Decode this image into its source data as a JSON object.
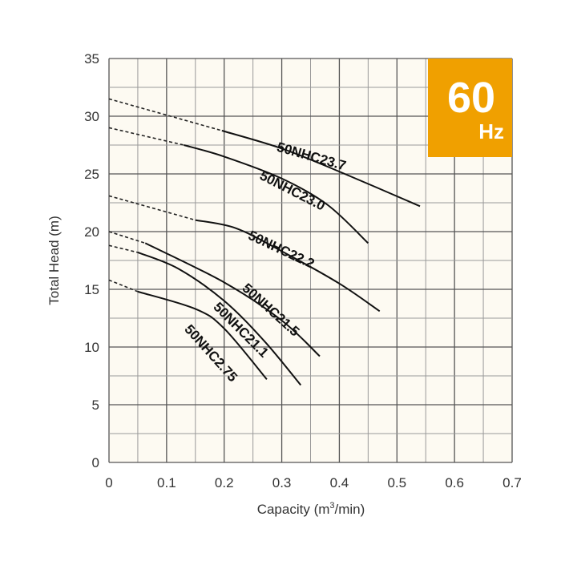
{
  "chart_data": {
    "type": "line",
    "title": "",
    "xlabel": "Capacity (m³/min)",
    "xlabel_parts": {
      "pre": "Capacity (m",
      "sup": "3",
      "post": "/min)"
    },
    "ylabel": "Total Head (m)",
    "xlim": [
      0,
      0.7
    ],
    "ylim": [
      0,
      35
    ],
    "xticks": [
      "0",
      "0.1",
      "0.2",
      "0.3",
      "0.4",
      "0.5",
      "0.6",
      "0.7"
    ],
    "yticks": [
      "0",
      "5",
      "10",
      "15",
      "20",
      "25",
      "30",
      "35"
    ],
    "grid": true,
    "badge": {
      "value": "60",
      "unit": "Hz",
      "color": "#f0a000"
    },
    "colors": {
      "background": "#fdfaf2",
      "grid": "#555555",
      "curve": "#111111"
    },
    "series": [
      {
        "name": "50NHC23.7",
        "dashed": [
          [
            0,
            31.5
          ],
          [
            0.196,
            28.75
          ]
        ],
        "solid": [
          [
            0.196,
            28.75
          ],
          [
            0.3,
            27.2
          ],
          [
            0.4,
            25.2
          ],
          [
            0.54,
            22.2
          ]
        ]
      },
      {
        "name": "50NHC23.0",
        "dashed": [
          [
            0,
            29.0
          ],
          [
            0.13,
            27.5
          ]
        ],
        "solid": [
          [
            0.13,
            27.5
          ],
          [
            0.2,
            26.5
          ],
          [
            0.3,
            24.6
          ],
          [
            0.38,
            22.3
          ],
          [
            0.45,
            19.0
          ]
        ]
      },
      {
        "name": "50NHC22.2",
        "dashed": [
          [
            0,
            23.1
          ],
          [
            0.15,
            21.0
          ]
        ],
        "solid": [
          [
            0.15,
            21.0
          ],
          [
            0.22,
            20.3
          ],
          [
            0.3,
            18.3
          ],
          [
            0.4,
            15.5
          ],
          [
            0.47,
            13.1
          ]
        ]
      },
      {
        "name": "50NHC21.5",
        "dashed": [
          [
            0,
            20.0
          ],
          [
            0.063,
            19.0
          ]
        ],
        "solid": [
          [
            0.063,
            19.0
          ],
          [
            0.2,
            15.6
          ],
          [
            0.3,
            12.3
          ],
          [
            0.366,
            9.2
          ]
        ]
      },
      {
        "name": "50NHC21.1",
        "dashed": [
          [
            0,
            18.8
          ],
          [
            0.05,
            18.2
          ]
        ],
        "solid": [
          [
            0.05,
            18.2
          ],
          [
            0.12,
            16.8
          ],
          [
            0.2,
            14.0
          ],
          [
            0.27,
            10.5
          ],
          [
            0.333,
            6.7
          ]
        ]
      },
      {
        "name": "50NHC2.75",
        "dashed": [
          [
            0,
            15.8
          ],
          [
            0.05,
            14.8
          ]
        ],
        "solid": [
          [
            0.05,
            14.8
          ],
          [
            0.15,
            13.3
          ],
          [
            0.2,
            11.6
          ],
          [
            0.274,
            7.2
          ]
        ]
      }
    ]
  }
}
